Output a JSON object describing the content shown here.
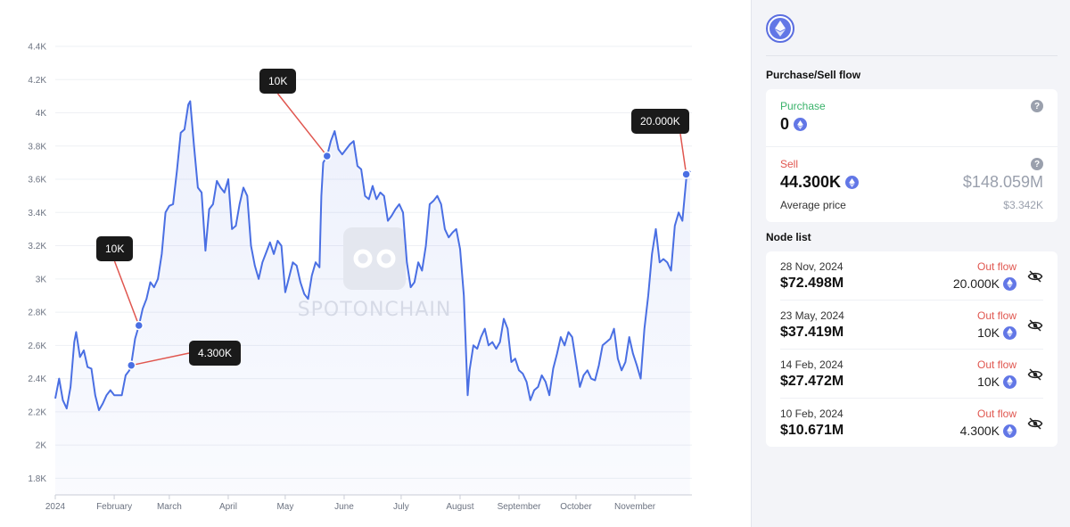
{
  "chart_data": {
    "type": "line",
    "title": "",
    "xlabel": "",
    "ylabel": "",
    "ylim": [
      1700,
      4400
    ],
    "y_ticks": [
      1800,
      2000,
      2200,
      2400,
      2600,
      2800,
      3000,
      3200,
      3400,
      3600,
      3800,
      4000,
      4200,
      4400
    ],
    "y_tick_labels": [
      "1.8K",
      "2K",
      "2.2K",
      "2.4K",
      "2.6K",
      "2.8K",
      "3K",
      "3.2K",
      "3.4K",
      "3.6K",
      "3.8K",
      "4K",
      "4.2K",
      "4.4K"
    ],
    "x_range": [
      "2024-01-01",
      "2024-12-01"
    ],
    "x_ticks": [
      {
        "date": "2024-01-01",
        "label": "2024"
      },
      {
        "date": "2024-02-01",
        "label": "February"
      },
      {
        "date": "2024-03-01",
        "label": "March"
      },
      {
        "date": "2024-04-01",
        "label": "April"
      },
      {
        "date": "2024-05-01",
        "label": "May"
      },
      {
        "date": "2024-06-01",
        "label": "June"
      },
      {
        "date": "2024-07-01",
        "label": "July"
      },
      {
        "date": "2024-08-01",
        "label": "August"
      },
      {
        "date": "2024-09-01",
        "label": "September"
      },
      {
        "date": "2024-10-01",
        "label": "October"
      },
      {
        "date": "2024-11-01",
        "label": "November"
      }
    ],
    "grid": true,
    "line_color": "#4a6fe3",
    "series": [
      {
        "points": [
          [
            "2024-01-01",
            2280
          ],
          [
            "2024-01-03",
            2400
          ],
          [
            "2024-01-05",
            2270
          ],
          [
            "2024-01-07",
            2220
          ],
          [
            "2024-01-09",
            2350
          ],
          [
            "2024-01-11",
            2620
          ],
          [
            "2024-01-12",
            2680
          ],
          [
            "2024-01-14",
            2530
          ],
          [
            "2024-01-16",
            2570
          ],
          [
            "2024-01-18",
            2470
          ],
          [
            "2024-01-20",
            2460
          ],
          [
            "2024-01-22",
            2300
          ],
          [
            "2024-01-24",
            2210
          ],
          [
            "2024-01-26",
            2250
          ],
          [
            "2024-01-28",
            2300
          ],
          [
            "2024-01-30",
            2330
          ],
          [
            "2024-02-01",
            2300
          ],
          [
            "2024-02-03",
            2300
          ],
          [
            "2024-02-05",
            2300
          ],
          [
            "2024-02-07",
            2420
          ],
          [
            "2024-02-09",
            2450
          ],
          [
            "2024-02-10",
            2490
          ],
          [
            "2024-02-12",
            2640
          ],
          [
            "2024-02-14",
            2720
          ],
          [
            "2024-02-16",
            2820
          ],
          [
            "2024-02-18",
            2880
          ],
          [
            "2024-02-20",
            2980
          ],
          [
            "2024-02-22",
            2950
          ],
          [
            "2024-02-24",
            3000
          ],
          [
            "2024-02-26",
            3150
          ],
          [
            "2024-02-28",
            3400
          ],
          [
            "2024-03-01",
            3440
          ],
          [
            "2024-03-03",
            3450
          ],
          [
            "2024-03-05",
            3650
          ],
          [
            "2024-03-07",
            3880
          ],
          [
            "2024-03-09",
            3900
          ],
          [
            "2024-03-11",
            4050
          ],
          [
            "2024-03-12",
            4070
          ],
          [
            "2024-03-14",
            3800
          ],
          [
            "2024-03-16",
            3550
          ],
          [
            "2024-03-18",
            3520
          ],
          [
            "2024-03-20",
            3170
          ],
          [
            "2024-03-22",
            3420
          ],
          [
            "2024-03-24",
            3450
          ],
          [
            "2024-03-26",
            3590
          ],
          [
            "2024-03-28",
            3550
          ],
          [
            "2024-03-30",
            3520
          ],
          [
            "2024-04-01",
            3600
          ],
          [
            "2024-04-03",
            3300
          ],
          [
            "2024-04-05",
            3320
          ],
          [
            "2024-04-07",
            3450
          ],
          [
            "2024-04-09",
            3550
          ],
          [
            "2024-04-11",
            3500
          ],
          [
            "2024-04-13",
            3200
          ],
          [
            "2024-04-15",
            3080
          ],
          [
            "2024-04-17",
            3000
          ],
          [
            "2024-04-19",
            3100
          ],
          [
            "2024-04-21",
            3160
          ],
          [
            "2024-04-23",
            3220
          ],
          [
            "2024-04-25",
            3150
          ],
          [
            "2024-04-27",
            3230
          ],
          [
            "2024-04-29",
            3200
          ],
          [
            "2024-05-01",
            2920
          ],
          [
            "2024-05-03",
            3010
          ],
          [
            "2024-05-05",
            3100
          ],
          [
            "2024-05-07",
            3080
          ],
          [
            "2024-05-09",
            2980
          ],
          [
            "2024-05-11",
            2910
          ],
          [
            "2024-05-13",
            2880
          ],
          [
            "2024-05-15",
            3020
          ],
          [
            "2024-05-17",
            3100
          ],
          [
            "2024-05-19",
            3070
          ],
          [
            "2024-05-20",
            3500
          ],
          [
            "2024-05-21",
            3700
          ],
          [
            "2024-05-23",
            3740
          ],
          [
            "2024-05-25",
            3830
          ],
          [
            "2024-05-27",
            3890
          ],
          [
            "2024-05-29",
            3780
          ],
          [
            "2024-05-31",
            3750
          ],
          [
            "2024-06-02",
            3780
          ],
          [
            "2024-06-04",
            3810
          ],
          [
            "2024-06-06",
            3830
          ],
          [
            "2024-06-08",
            3680
          ],
          [
            "2024-06-10",
            3660
          ],
          [
            "2024-06-12",
            3500
          ],
          [
            "2024-06-14",
            3480
          ],
          [
            "2024-06-16",
            3560
          ],
          [
            "2024-06-18",
            3480
          ],
          [
            "2024-06-20",
            3520
          ],
          [
            "2024-06-22",
            3500
          ],
          [
            "2024-06-24",
            3350
          ],
          [
            "2024-06-26",
            3380
          ],
          [
            "2024-06-28",
            3420
          ],
          [
            "2024-06-30",
            3450
          ],
          [
            "2024-07-02",
            3400
          ],
          [
            "2024-07-04",
            3100
          ],
          [
            "2024-07-06",
            2950
          ],
          [
            "2024-07-08",
            2980
          ],
          [
            "2024-07-10",
            3100
          ],
          [
            "2024-07-12",
            3050
          ],
          [
            "2024-07-14",
            3200
          ],
          [
            "2024-07-16",
            3450
          ],
          [
            "2024-07-18",
            3470
          ],
          [
            "2024-07-20",
            3500
          ],
          [
            "2024-07-22",
            3450
          ],
          [
            "2024-07-24",
            3300
          ],
          [
            "2024-07-26",
            3250
          ],
          [
            "2024-07-28",
            3280
          ],
          [
            "2024-07-30",
            3300
          ],
          [
            "2024-08-01",
            3180
          ],
          [
            "2024-08-03",
            2900
          ],
          [
            "2024-08-05",
            2300
          ],
          [
            "2024-08-06",
            2450
          ],
          [
            "2024-08-08",
            2600
          ],
          [
            "2024-08-10",
            2580
          ],
          [
            "2024-08-12",
            2650
          ],
          [
            "2024-08-14",
            2700
          ],
          [
            "2024-08-16",
            2600
          ],
          [
            "2024-08-18",
            2620
          ],
          [
            "2024-08-20",
            2580
          ],
          [
            "2024-08-22",
            2620
          ],
          [
            "2024-08-24",
            2760
          ],
          [
            "2024-08-26",
            2700
          ],
          [
            "2024-08-28",
            2500
          ],
          [
            "2024-08-30",
            2520
          ],
          [
            "2024-09-01",
            2450
          ],
          [
            "2024-09-03",
            2430
          ],
          [
            "2024-09-05",
            2380
          ],
          [
            "2024-09-07",
            2270
          ],
          [
            "2024-09-09",
            2330
          ],
          [
            "2024-09-11",
            2350
          ],
          [
            "2024-09-13",
            2420
          ],
          [
            "2024-09-15",
            2380
          ],
          [
            "2024-09-17",
            2300
          ],
          [
            "2024-09-19",
            2460
          ],
          [
            "2024-09-21",
            2550
          ],
          [
            "2024-09-23",
            2650
          ],
          [
            "2024-09-25",
            2600
          ],
          [
            "2024-09-27",
            2680
          ],
          [
            "2024-09-29",
            2650
          ],
          [
            "2024-10-01",
            2500
          ],
          [
            "2024-10-03",
            2350
          ],
          [
            "2024-10-05",
            2420
          ],
          [
            "2024-10-07",
            2450
          ],
          [
            "2024-10-09",
            2400
          ],
          [
            "2024-10-11",
            2390
          ],
          [
            "2024-10-13",
            2480
          ],
          [
            "2024-10-15",
            2600
          ],
          [
            "2024-10-17",
            2620
          ],
          [
            "2024-10-19",
            2640
          ],
          [
            "2024-10-21",
            2700
          ],
          [
            "2024-10-23",
            2520
          ],
          [
            "2024-10-25",
            2450
          ],
          [
            "2024-10-27",
            2500
          ],
          [
            "2024-10-29",
            2650
          ],
          [
            "2024-10-31",
            2550
          ],
          [
            "2024-11-02",
            2480
          ],
          [
            "2024-11-04",
            2400
          ],
          [
            "2024-11-06",
            2700
          ],
          [
            "2024-11-08",
            2900
          ],
          [
            "2024-11-10",
            3150
          ],
          [
            "2024-11-12",
            3300
          ],
          [
            "2024-11-14",
            3100
          ],
          [
            "2024-11-16",
            3120
          ],
          [
            "2024-11-18",
            3100
          ],
          [
            "2024-11-20",
            3050
          ],
          [
            "2024-11-22",
            3320
          ],
          [
            "2024-11-24",
            3400
          ],
          [
            "2024-11-26",
            3350
          ],
          [
            "2024-11-28",
            3600
          ],
          [
            "2024-11-30",
            3650
          ]
        ]
      }
    ],
    "annotations": [
      {
        "date": "2024-02-10",
        "value": 2480,
        "label": "4.300K"
      },
      {
        "date": "2024-02-14",
        "value": 2720,
        "label": "10K"
      },
      {
        "date": "2024-05-23",
        "value": 3740,
        "label": "10K"
      },
      {
        "date": "2024-11-28",
        "value": 3630,
        "label": "20.000K"
      }
    ],
    "watermark": "SPOTONCHAIN"
  },
  "panel": {
    "logo_icon": "ethereum-icon",
    "flow_title": "Purchase/Sell flow",
    "purchase": {
      "label": "Purchase",
      "amount": "0"
    },
    "sell": {
      "label": "Sell",
      "amount": "44.300K",
      "usd": "$148.059M",
      "avg_label": "Average price",
      "avg_value": "$3.342K"
    },
    "node_title": "Node list",
    "nodes": [
      {
        "date": "28 Nov, 2024",
        "flow": "Out flow",
        "usd": "$72.498M",
        "amount": "20.000K"
      },
      {
        "date": "23 May, 2024",
        "flow": "Out flow",
        "usd": "$37.419M",
        "amount": "10K"
      },
      {
        "date": "14 Feb, 2024",
        "flow": "Out flow",
        "usd": "$27.472M",
        "amount": "10K"
      },
      {
        "date": "10 Feb, 2024",
        "flow": "Out flow",
        "usd": "$10.671M",
        "amount": "4.300K"
      }
    ]
  },
  "colors": {
    "accent": "#4a6fe3",
    "buy": "#39b26a",
    "sell": "#e0564f",
    "muted": "#9aa0ad"
  }
}
